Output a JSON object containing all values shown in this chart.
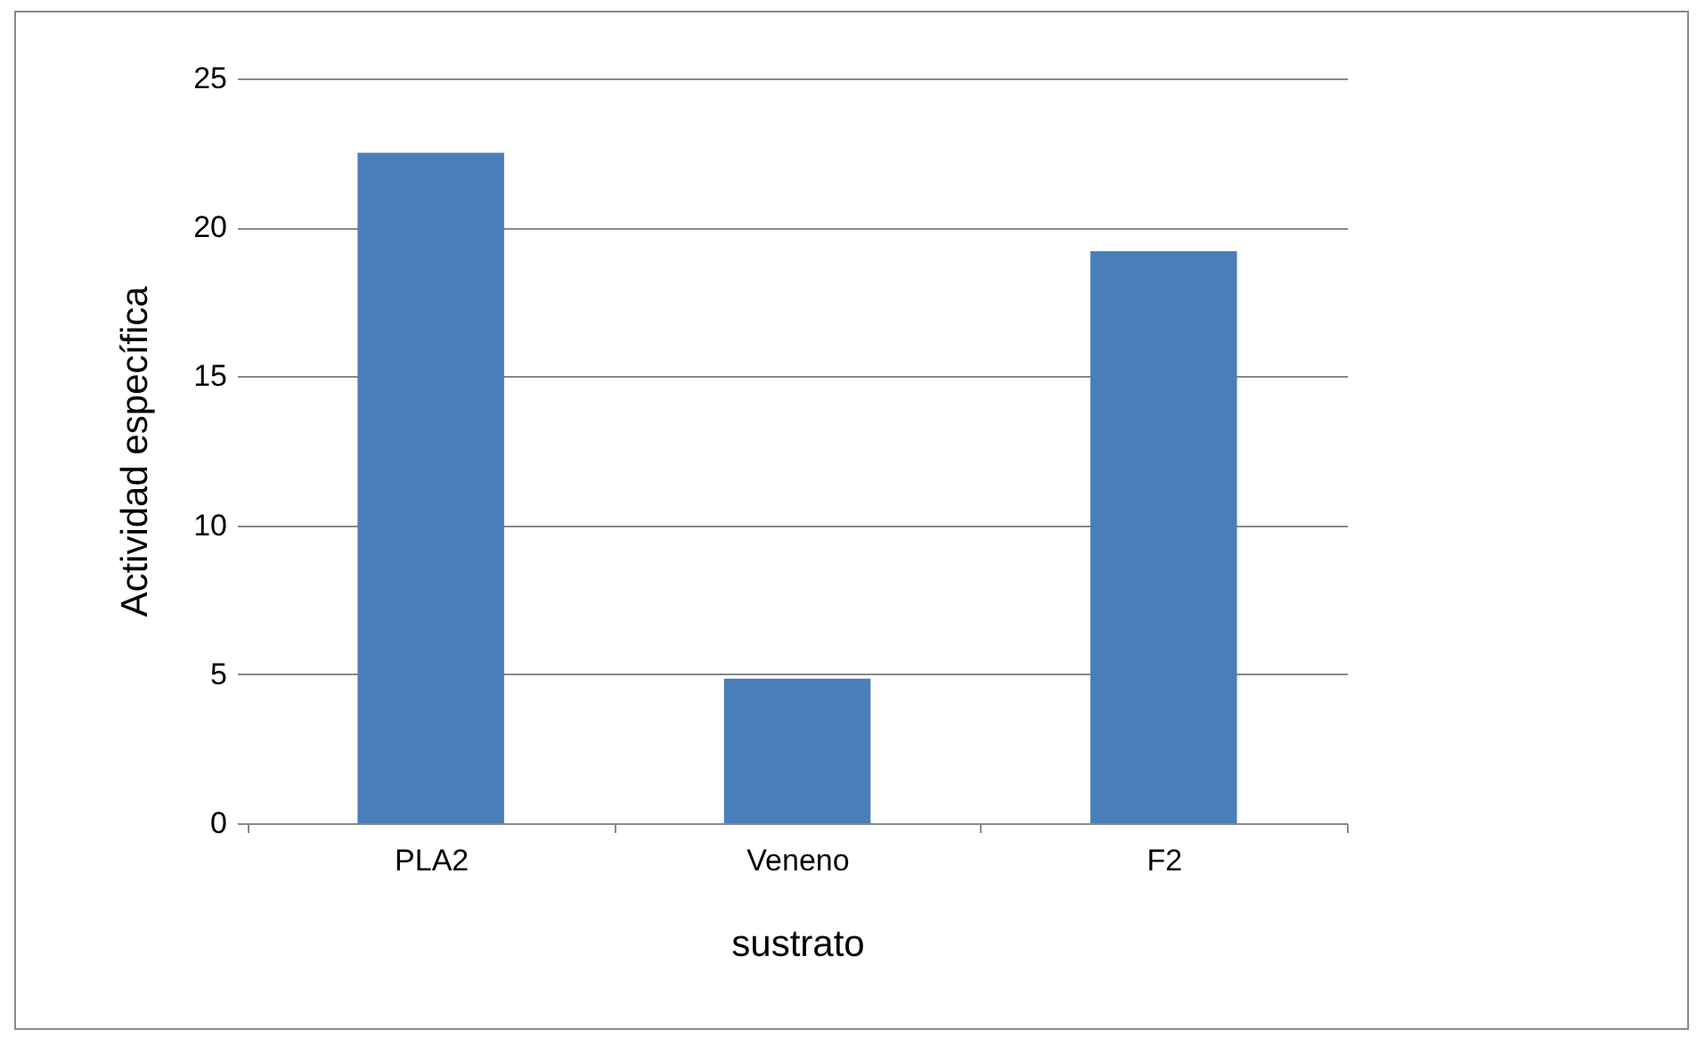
{
  "chart_data": {
    "type": "bar",
    "xlabel": "sustrato",
    "ylabel": "Actividad específica",
    "categories": [
      "PLA2",
      "Veneno",
      "F2"
    ],
    "values": [
      22.5,
      4.85,
      19.2
    ],
    "color": "#4a7ebb",
    "ylim": [
      0,
      25
    ],
    "yticks": [
      0,
      5,
      10,
      15,
      20,
      25
    ],
    "grid": "y"
  }
}
